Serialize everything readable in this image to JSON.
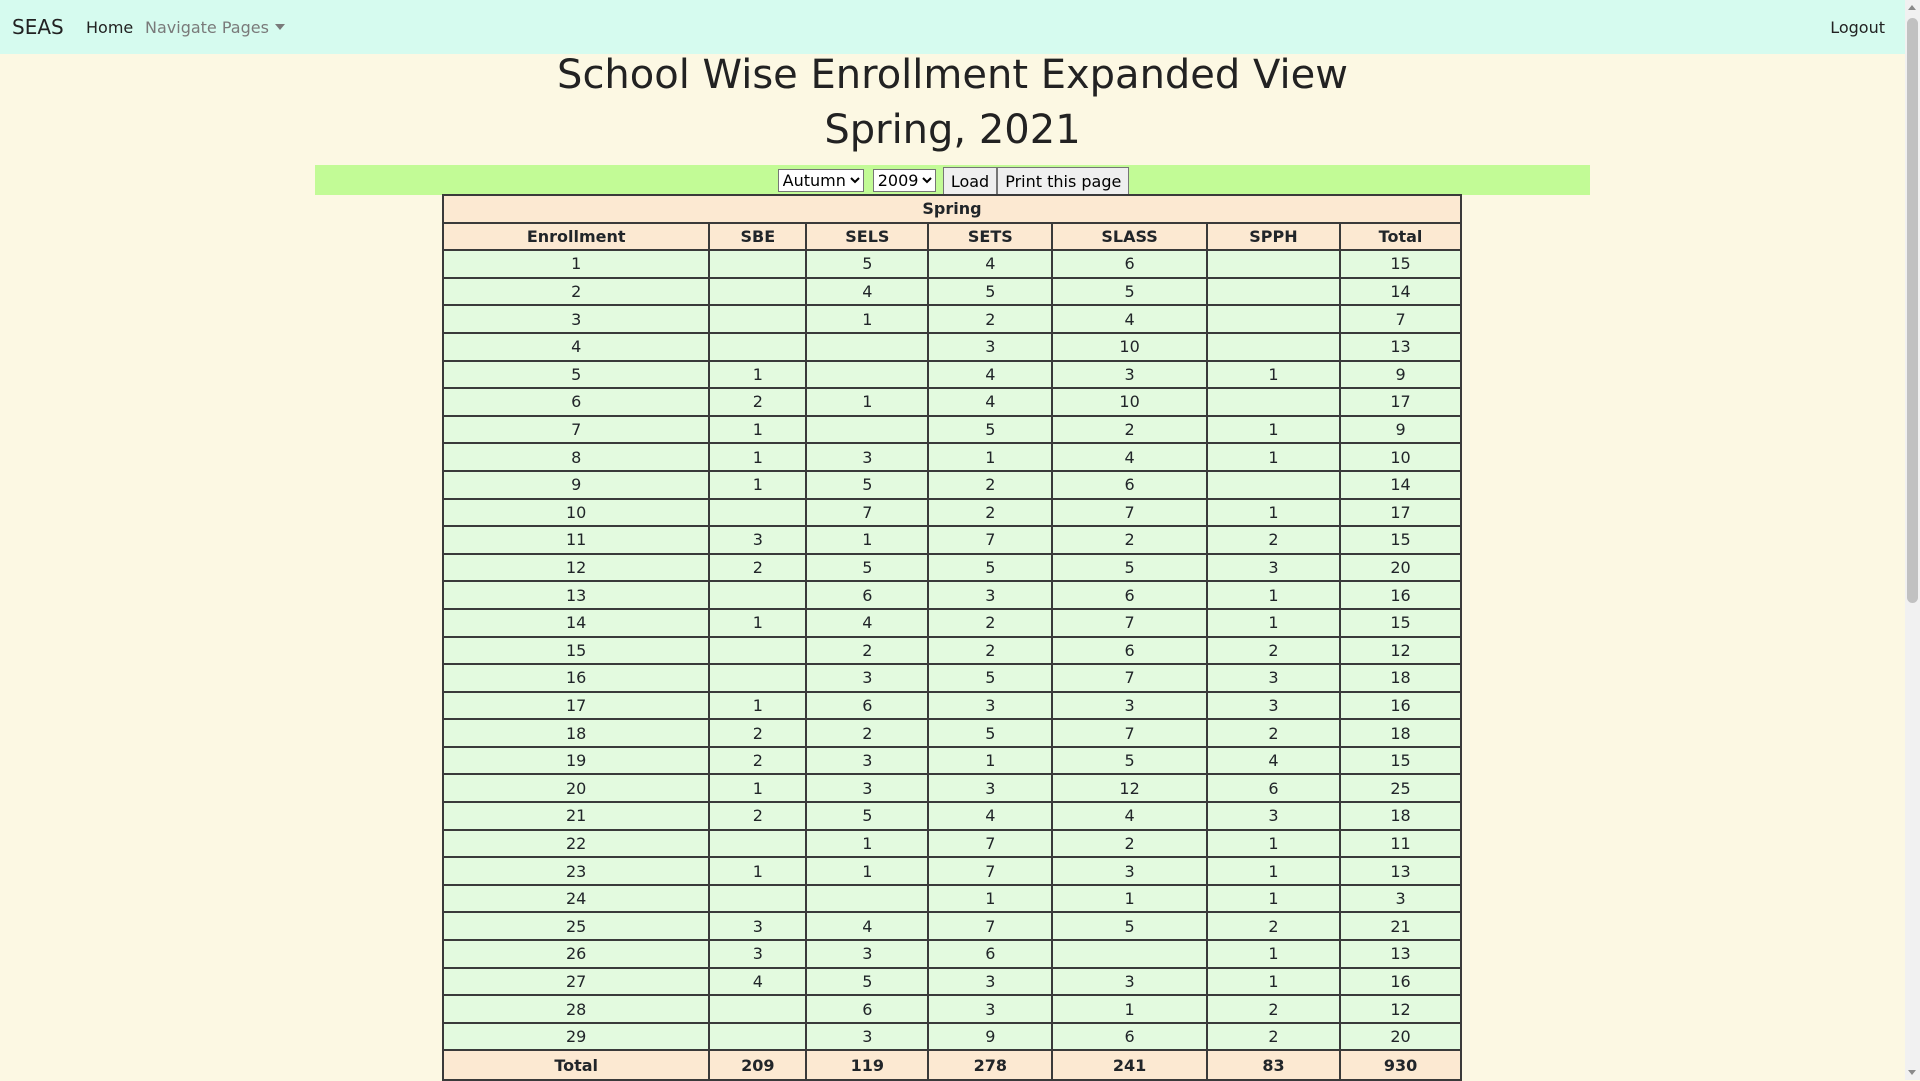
{
  "navbar": {
    "brand": "SEAS",
    "home": "Home",
    "navigate": "Navigate Pages",
    "logout": "Logout"
  },
  "page": {
    "title": "School Wise Enrollment Expanded View",
    "subtitle": "Spring, 2021"
  },
  "controls": {
    "semester_selected": "Autumn",
    "year_selected": "2009",
    "load_label": "Load",
    "print_label": "Print this page"
  },
  "table": {
    "caption": "Spring",
    "headers": [
      "Enrollment",
      "SBE",
      "SELS",
      "SETS",
      "SLASS",
      "SPPH",
      "Total"
    ],
    "rows": [
      [
        "1",
        "",
        "5",
        "4",
        "6",
        "",
        "15"
      ],
      [
        "2",
        "",
        "4",
        "5",
        "5",
        "",
        "14"
      ],
      [
        "3",
        "",
        "1",
        "2",
        "4",
        "",
        "7"
      ],
      [
        "4",
        "",
        "",
        "3",
        "10",
        "",
        "13"
      ],
      [
        "5",
        "1",
        "",
        "4",
        "3",
        "1",
        "9"
      ],
      [
        "6",
        "2",
        "1",
        "4",
        "10",
        "",
        "17"
      ],
      [
        "7",
        "1",
        "",
        "5",
        "2",
        "1",
        "9"
      ],
      [
        "8",
        "1",
        "3",
        "1",
        "4",
        "1",
        "10"
      ],
      [
        "9",
        "1",
        "5",
        "2",
        "6",
        "",
        "14"
      ],
      [
        "10",
        "",
        "7",
        "2",
        "7",
        "1",
        "17"
      ],
      [
        "11",
        "3",
        "1",
        "7",
        "2",
        "2",
        "15"
      ],
      [
        "12",
        "2",
        "5",
        "5",
        "5",
        "3",
        "20"
      ],
      [
        "13",
        "",
        "6",
        "3",
        "6",
        "1",
        "16"
      ],
      [
        "14",
        "1",
        "4",
        "2",
        "7",
        "1",
        "15"
      ],
      [
        "15",
        "",
        "2",
        "2",
        "6",
        "2",
        "12"
      ],
      [
        "16",
        "",
        "3",
        "5",
        "7",
        "3",
        "18"
      ],
      [
        "17",
        "1",
        "6",
        "3",
        "3",
        "3",
        "16"
      ],
      [
        "18",
        "2",
        "2",
        "5",
        "7",
        "2",
        "18"
      ],
      [
        "19",
        "2",
        "3",
        "1",
        "5",
        "4",
        "15"
      ],
      [
        "20",
        "1",
        "3",
        "3",
        "12",
        "6",
        "25"
      ],
      [
        "21",
        "2",
        "5",
        "4",
        "4",
        "3",
        "18"
      ],
      [
        "22",
        "",
        "1",
        "7",
        "2",
        "1",
        "11"
      ],
      [
        "23",
        "1",
        "1",
        "7",
        "3",
        "1",
        "13"
      ],
      [
        "24",
        "",
        "",
        "1",
        "1",
        "1",
        "3"
      ],
      [
        "25",
        "3",
        "4",
        "7",
        "5",
        "2",
        "21"
      ],
      [
        "26",
        "3",
        "3",
        "6",
        "",
        "1",
        "13"
      ],
      [
        "27",
        "4",
        "5",
        "3",
        "3",
        "1",
        "16"
      ],
      [
        "28",
        "",
        "6",
        "3",
        "1",
        "2",
        "12"
      ],
      [
        "29",
        "",
        "3",
        "9",
        "6",
        "2",
        "20"
      ]
    ],
    "totals": [
      "Total",
      "209",
      "119",
      "278",
      "241",
      "83",
      "930"
    ]
  }
}
